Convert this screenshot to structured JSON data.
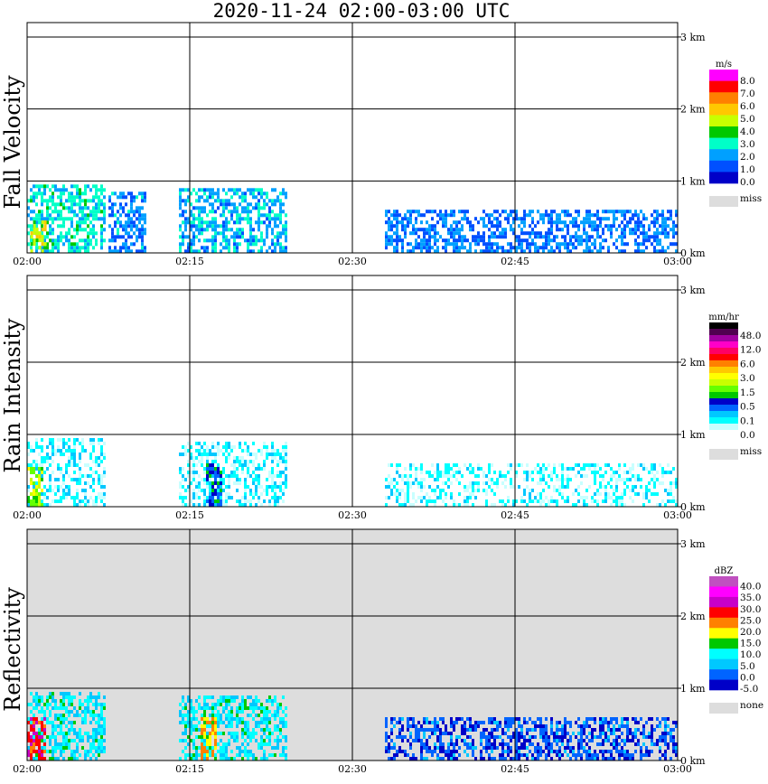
{
  "title": "2020-11-24   02:00-03:00 UTC",
  "time_ticks": [
    "02:00",
    "02:15",
    "02:30",
    "02:45",
    "03:00"
  ],
  "height_ticks": [
    "0 km",
    "1 km",
    "2 km",
    "3 km"
  ],
  "chart_data": [
    {
      "type": "heatmap",
      "title": "Fall Velocity",
      "x_range": [
        "02:00",
        "03:00"
      ],
      "y_range_km": [
        0,
        3.2
      ],
      "background": "#ffffff",
      "colorbar": {
        "unit": "m/s",
        "labels": [
          "8.0",
          "7.0",
          "6.0",
          "5.0",
          "4.0",
          "3.0",
          "2.0",
          "1.0",
          "0.0"
        ],
        "colors": [
          "#ff00ff",
          "#ff0000",
          "#ff8000",
          "#ffc800",
          "#c8ff00",
          "#00c800",
          "#00ffc8",
          "#00a0ff",
          "#0050ff",
          "#0000c8"
        ],
        "missing_label": "miss",
        "missing_color": "#dddddd"
      },
      "regions": [
        {
          "t0": 0.0,
          "t1": 7.2,
          "h0": 0.0,
          "h1": 0.95,
          "level": 0.33
        },
        {
          "t0": 0.3,
          "t1": 1.6,
          "h0": 0.0,
          "h1": 0.45,
          "level": 0.55
        },
        {
          "t0": 7.5,
          "t1": 11.0,
          "h0": 0.0,
          "h1": 0.85,
          "level": 0.22
        },
        {
          "t0": 14.0,
          "t1": 24.0,
          "h0": 0.0,
          "h1": 0.9,
          "level": 0.26
        },
        {
          "t0": 33.0,
          "t1": 60.0,
          "h0": 0.0,
          "h1": 0.6,
          "level": 0.2
        }
      ]
    },
    {
      "type": "heatmap",
      "title": "Rain Intensity",
      "x_range": [
        "02:00",
        "03:00"
      ],
      "y_range_km": [
        0,
        3.2
      ],
      "background": "#ffffff",
      "colorbar": {
        "unit": "mm/hr",
        "labels": [
          "48.0",
          "12.0",
          "6.0",
          "3.0",
          "1.5",
          "0.5",
          "0.1",
          "0.0"
        ],
        "colors": [
          "#000000",
          "#500050",
          "#a000a0",
          "#ff00c8",
          "#ff0064",
          "#ff0000",
          "#ff8000",
          "#ffc800",
          "#ffff00",
          "#c8ff00",
          "#64ff00",
          "#00c800",
          "#0000c8",
          "#0064ff",
          "#00c8ff",
          "#00ffff",
          "#c8ffff",
          "#ffffff"
        ],
        "missing_label": "miss",
        "missing_color": "#dddddd"
      },
      "regions": [
        {
          "t0": 0.0,
          "t1": 7.2,
          "h0": 0.0,
          "h1": 0.95,
          "level": 0.12
        },
        {
          "t0": 0.0,
          "t1": 1.5,
          "h0": 0.0,
          "h1": 0.55,
          "level": 0.45
        },
        {
          "t0": 14.0,
          "t1": 24.0,
          "h0": 0.0,
          "h1": 0.9,
          "level": 0.12
        },
        {
          "t0": 16.5,
          "t1": 18.0,
          "h0": 0.0,
          "h1": 0.6,
          "level": 0.3
        },
        {
          "t0": 33.0,
          "t1": 60.0,
          "h0": 0.0,
          "h1": 0.6,
          "level": 0.1
        }
      ]
    },
    {
      "type": "heatmap",
      "title": "Reflectivity",
      "x_range": [
        "02:00",
        "03:00"
      ],
      "y_range_km": [
        0,
        3.2
      ],
      "background": "#dddddd",
      "colorbar": {
        "unit": "dBZ",
        "labels": [
          "40.0",
          "35.0",
          "30.0",
          "25.0",
          "20.0",
          "15.0",
          "10.0",
          "5.0",
          "0.0",
          "-5.0"
        ],
        "colors": [
          "#c050c0",
          "#ff00ff",
          "#c800c8",
          "#ff0000",
          "#ff8000",
          "#ffff00",
          "#00c800",
          "#00ffff",
          "#00c8ff",
          "#0064ff",
          "#0000c8"
        ],
        "missing_label": "none",
        "missing_color": "#dddddd"
      },
      "regions": [
        {
          "t0": 0.0,
          "t1": 7.2,
          "h0": 0.0,
          "h1": 0.95,
          "level": 0.3
        },
        {
          "t0": 0.0,
          "t1": 1.6,
          "h0": 0.0,
          "h1": 0.6,
          "level": 0.7
        },
        {
          "t0": 14.0,
          "t1": 24.0,
          "h0": 0.0,
          "h1": 0.9,
          "level": 0.3
        },
        {
          "t0": 16.0,
          "t1": 17.5,
          "h0": 0.0,
          "h1": 0.6,
          "level": 0.55
        },
        {
          "t0": 33.0,
          "t1": 60.0,
          "h0": 0.0,
          "h1": 0.6,
          "level": 0.12
        }
      ]
    }
  ]
}
